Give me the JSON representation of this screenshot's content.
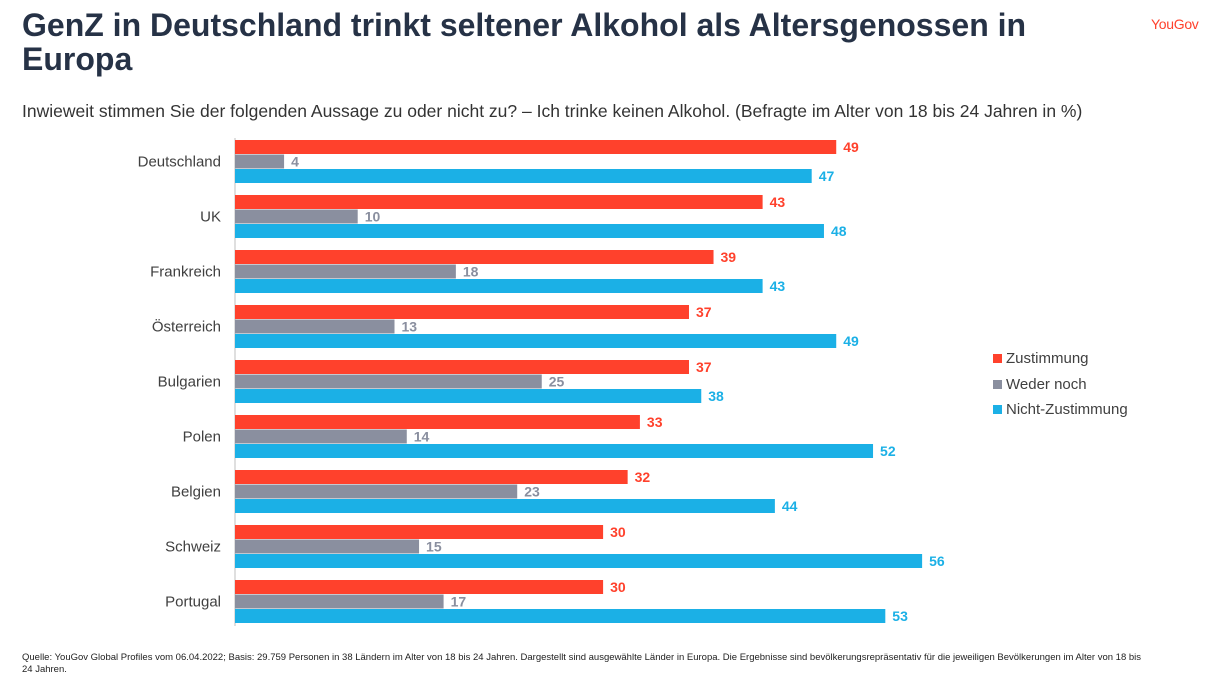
{
  "header": {
    "title": "GenZ in Deutschland trinkt seltener Alkohol als Altersgenossen in Europa",
    "brand": "YouGov"
  },
  "chart_data": {
    "type": "bar",
    "orientation": "horizontal",
    "subtitle": "Inwieweit stimmen Sie der folgenden Aussage zu oder nicht zu? – Ich trinke keinen Alkohol. (Befragte im Alter von 18 bis 24 Jahren in %)",
    "categories": [
      "Deutschland",
      "UK",
      "Frankreich",
      "Österreich",
      "Bulgarien",
      "Polen",
      "Belgien",
      "Schweiz",
      "Portugal"
    ],
    "series": [
      {
        "name": "Zustimmung",
        "color": "#ff412c",
        "values": [
          49,
          43,
          39,
          37,
          37,
          33,
          32,
          30,
          30
        ]
      },
      {
        "name": "Weder noch",
        "color": "#8a8f9f",
        "values": [
          4,
          10,
          18,
          13,
          25,
          14,
          23,
          15,
          17
        ]
      },
      {
        "name": "Nicht-Zustimmung",
        "color": "#1bb0e6",
        "values": [
          47,
          48,
          43,
          49,
          38,
          52,
          44,
          56,
          53
        ]
      }
    ],
    "legend_position": "right",
    "grid": false
  },
  "footnote": "Quelle: YouGov Global Profiles vom 06.04.2022; Basis: 29.759 Personen in 38 Ländern im Alter von 18 bis 24 Jahren. Dargestellt sind ausgewählte Länder in Europa. Die Ergebnisse sind bevölkerungsrepräsentativ für die jeweiligen Bevölkerungen im Alter von 18 bis 24 Jahren."
}
